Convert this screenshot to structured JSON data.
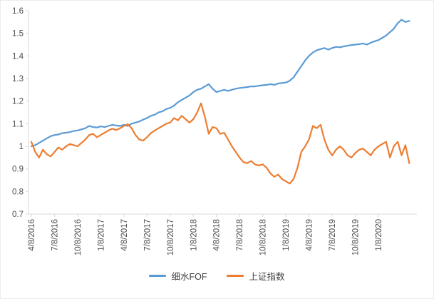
{
  "chart_data": {
    "type": "line",
    "title": "",
    "xlabel": "",
    "ylabel": "",
    "grid": false,
    "legend_position": "bottom",
    "axis_color": "#d9d9d9",
    "label_color": "#4d4d4d",
    "ylim": [
      0.7,
      1.6
    ],
    "y_tick_labels": [
      "0.7",
      "0.8",
      "0.9",
      "1",
      "1.1",
      "1.2",
      "1.3",
      "1.4",
      "1.5",
      "1.6"
    ],
    "x_tick_labels": [
      "4/8/2016",
      "7/8/2016",
      "10/8/2016",
      "1/8/2017",
      "4/8/2017",
      "7/8/2017",
      "10/8/2017",
      "1/8/2018",
      "4/8/2018",
      "7/8/2018",
      "10/8/2018",
      "1/8/2019",
      "4/8/2019",
      "7/8/2019",
      "10/8/2019",
      "1/8/2020"
    ],
    "points_per_tick": 6,
    "series": [
      {
        "name": "细水FOF",
        "color": "#5B9BD5",
        "values": [
          1.0,
          1.005,
          1.015,
          1.025,
          1.035,
          1.045,
          1.05,
          1.052,
          1.058,
          1.06,
          1.063,
          1.068,
          1.07,
          1.075,
          1.08,
          1.09,
          1.085,
          1.083,
          1.088,
          1.085,
          1.09,
          1.095,
          1.092,
          1.09,
          1.095,
          1.09,
          1.1,
          1.105,
          1.11,
          1.118,
          1.125,
          1.135,
          1.14,
          1.15,
          1.155,
          1.165,
          1.17,
          1.18,
          1.195,
          1.205,
          1.215,
          1.225,
          1.24,
          1.25,
          1.255,
          1.265,
          1.275,
          1.255,
          1.24,
          1.245,
          1.25,
          1.245,
          1.25,
          1.255,
          1.258,
          1.26,
          1.262,
          1.265,
          1.265,
          1.268,
          1.27,
          1.272,
          1.275,
          1.272,
          1.278,
          1.28,
          1.282,
          1.29,
          1.305,
          1.33,
          1.355,
          1.38,
          1.4,
          1.415,
          1.425,
          1.43,
          1.435,
          1.428,
          1.435,
          1.44,
          1.438,
          1.442,
          1.445,
          1.448,
          1.45,
          1.452,
          1.455,
          1.45,
          1.458,
          1.465,
          1.47,
          1.48,
          1.49,
          1.505,
          1.52,
          1.545,
          1.56,
          1.55,
          1.555
        ]
      },
      {
        "name": "上证指数",
        "color": "#ED7D31",
        "values": [
          1.02,
          0.975,
          0.95,
          0.985,
          0.965,
          0.955,
          0.975,
          0.995,
          0.985,
          1.0,
          1.01,
          1.005,
          1.0,
          1.015,
          1.03,
          1.05,
          1.055,
          1.04,
          1.05,
          1.06,
          1.07,
          1.078,
          1.072,
          1.08,
          1.09,
          1.098,
          1.08,
          1.05,
          1.03,
          1.025,
          1.04,
          1.058,
          1.07,
          1.08,
          1.09,
          1.1,
          1.105,
          1.125,
          1.115,
          1.135,
          1.12,
          1.105,
          1.12,
          1.15,
          1.19,
          1.13,
          1.055,
          1.085,
          1.08,
          1.055,
          1.06,
          1.03,
          1.0,
          0.975,
          0.95,
          0.93,
          0.925,
          0.935,
          0.92,
          0.915,
          0.92,
          0.905,
          0.88,
          0.865,
          0.875,
          0.855,
          0.845,
          0.835,
          0.855,
          0.905,
          0.975,
          1.0,
          1.03,
          1.09,
          1.08,
          1.095,
          1.03,
          0.985,
          0.96,
          0.985,
          1.0,
          0.985,
          0.96,
          0.95,
          0.97,
          0.985,
          0.99,
          0.975,
          0.96,
          0.985,
          1.0,
          1.01,
          1.02,
          0.95,
          1.0,
          1.02,
          0.96,
          1.005,
          0.925
        ]
      }
    ]
  }
}
